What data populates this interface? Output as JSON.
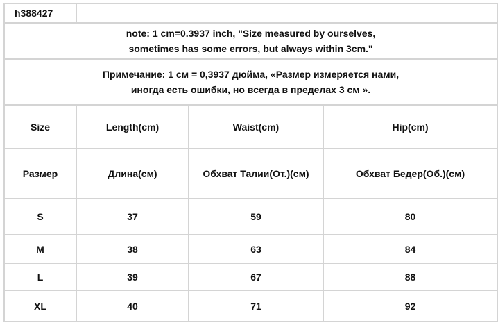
{
  "product_code": "h388427",
  "note_en": [
    "note: 1 cm=0.3937 inch, \"Size measured by ourselves,",
    "sometimes has some errors, but always within 3cm.\""
  ],
  "note_ru": [
    "Примечание: 1 см = 0,3937 дюйма, «Размер измеряется нами,",
    "иногда есть ошибки, но всегда в пределах 3 см »."
  ],
  "headers_en": [
    "Size",
    "Length(cm)",
    "Waist(cm)",
    "Hip(cm)"
  ],
  "headers_ru": [
    "Размер",
    "Длина(см)",
    "Обхват Талии(От.)(см)",
    "Обхват Бедер(Об.)(см)"
  ],
  "rows": [
    [
      "S",
      "37",
      "59",
      "80"
    ],
    [
      "M",
      "38",
      "63",
      "84"
    ],
    [
      "L",
      "39",
      "67",
      "88"
    ],
    [
      "XL",
      "40",
      "71",
      "92"
    ]
  ]
}
